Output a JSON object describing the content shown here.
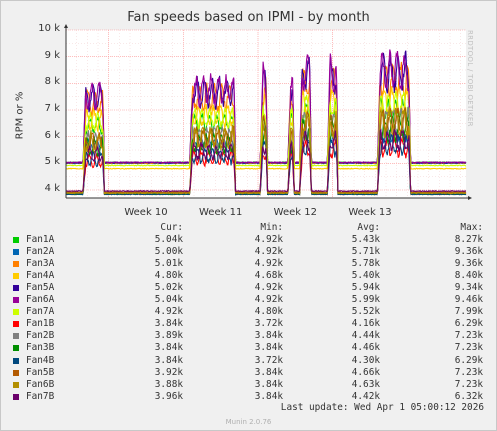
{
  "chart_data": {
    "type": "line",
    "title": "Fan speeds based on IPMI - by month",
    "ylabel": "RPM or %",
    "watermark": "RRDTOOL / TOBI OETIKER",
    "ylim": [
      3700,
      10000
    ],
    "yticks": [
      "4 k",
      "5 k",
      "6 k",
      "7 k",
      "8 k",
      "9 k",
      "10 k"
    ],
    "ytick_values": [
      4000,
      5000,
      6000,
      7000,
      8000,
      9000,
      10000
    ],
    "xlabels": [
      "Week 10",
      "Week 11",
      "Week 12",
      "Week 13"
    ],
    "xlabel_days": [
      7.5,
      14.5,
      21.5,
      28.5
    ],
    "xlim_days": [
      0,
      32
    ],
    "segments": [
      {
        "day_start": 0.0,
        "day_end": 1.6,
        "kind": "idle"
      },
      {
        "day_start": 1.6,
        "day_end": 3.6,
        "kind": "busy",
        "scale": 0.72
      },
      {
        "day_start": 3.6,
        "day_end": 11.6,
        "kind": "idle"
      },
      {
        "day_start": 11.6,
        "day_end": 15.9,
        "kind": "busy",
        "scale": 0.78
      },
      {
        "day_start": 15.9,
        "day_end": 18.2,
        "kind": "idle"
      },
      {
        "day_start": 18.2,
        "day_end": 18.9,
        "kind": "spike",
        "scale": 0.9
      },
      {
        "day_start": 18.9,
        "day_end": 20.8,
        "kind": "idle"
      },
      {
        "day_start": 20.8,
        "day_end": 21.4,
        "kind": "spike",
        "scale": 0.8
      },
      {
        "day_start": 21.4,
        "day_end": 21.9,
        "kind": "idle"
      },
      {
        "day_start": 21.9,
        "day_end": 23.0,
        "kind": "spike",
        "scale": 0.97
      },
      {
        "day_start": 23.0,
        "day_end": 24.5,
        "kind": "idle"
      },
      {
        "day_start": 24.5,
        "day_end": 25.5,
        "kind": "busy",
        "scale": 0.97
      },
      {
        "day_start": 25.5,
        "day_end": 29.2,
        "kind": "idle"
      },
      {
        "day_start": 29.2,
        "day_end": 32.3,
        "kind": "busy",
        "scale": 1.0
      },
      {
        "day_start": 32.3,
        "day_end": 33.0,
        "kind": "idle"
      },
      {
        "day_start": 33.0,
        "day_end": 37.5,
        "kind": "idle_cur"
      }
    ],
    "series": [
      {
        "name": "Fan1A",
        "color": "#00cc00",
        "idle": 5040,
        "peak": 7300,
        "cur": "5.04k",
        "min": "4.92k",
        "avg": "5.43k",
        "max": "8.27k"
      },
      {
        "name": "Fan2A",
        "color": "#0066b3",
        "idle": 5000,
        "peak": 6200,
        "cur": "5.00k",
        "min": "4.92k",
        "avg": "5.71k",
        "max": "9.36k"
      },
      {
        "name": "Fan3A",
        "color": "#ff8000",
        "idle": 5010,
        "peak": 8700,
        "cur": "5.01k",
        "min": "4.92k",
        "avg": "5.78k",
        "max": "9.36k"
      },
      {
        "name": "Fan4A",
        "color": "#ffcc00",
        "idle": 4800,
        "peak": 7800,
        "cur": "4.80k",
        "min": "4.68k",
        "avg": "5.40k",
        "max": "8.40k"
      },
      {
        "name": "Fan5A",
        "color": "#330099",
        "idle": 5020,
        "peak": 9000,
        "cur": "5.02k",
        "min": "4.92k",
        "avg": "5.94k",
        "max": "9.34k"
      },
      {
        "name": "Fan6A",
        "color": "#990099",
        "idle": 5040,
        "peak": 9100,
        "cur": "5.04k",
        "min": "4.92k",
        "avg": "5.99k",
        "max": "9.46k"
      },
      {
        "name": "Fan7A",
        "color": "#ccff00",
        "idle": 4920,
        "peak": 7600,
        "cur": "4.92k",
        "min": "4.80k",
        "avg": "5.52k",
        "max": "7.99k"
      },
      {
        "name": "Fan1B",
        "color": "#ff0000",
        "idle": 3840,
        "peak": 5900,
        "cur": "3.84k",
        "min": "3.72k",
        "avg": "4.16k",
        "max": "6.29k"
      },
      {
        "name": "Fan2B",
        "color": "#808080",
        "idle": 3890,
        "peak": 7000,
        "cur": "3.89k",
        "min": "3.84k",
        "avg": "4.44k",
        "max": "7.23k"
      },
      {
        "name": "Fan3B",
        "color": "#008f00",
        "idle": 3840,
        "peak": 6700,
        "cur": "3.84k",
        "min": "3.84k",
        "avg": "4.46k",
        "max": "7.23k"
      },
      {
        "name": "Fan4B",
        "color": "#00487d",
        "idle": 3840,
        "peak": 6000,
        "cur": "3.84k",
        "min": "3.72k",
        "avg": "4.30k",
        "max": "6.29k"
      },
      {
        "name": "Fan5B",
        "color": "#b35a00",
        "idle": 3920,
        "peak": 7000,
        "cur": "3.92k",
        "min": "3.84k",
        "avg": "4.66k",
        "max": "7.23k"
      },
      {
        "name": "Fan6B",
        "color": "#b38f00",
        "idle": 3880,
        "peak": 7000,
        "cur": "3.88k",
        "min": "3.84k",
        "avg": "4.63k",
        "max": "7.23k"
      },
      {
        "name": "Fan7B",
        "color": "#6b006b",
        "idle": 3960,
        "peak": 6200,
        "cur": "3.96k",
        "min": "3.84k",
        "avg": "4.42k",
        "max": "6.32k"
      }
    ]
  },
  "legend": {
    "headers": {
      "cur": "Cur:",
      "min": "Min:",
      "avg": "Avg:",
      "max": "Max:"
    }
  },
  "footer": {
    "last_update": "Last update:  Wed Apr  1 05:00:12 2026",
    "munin": "Munin 2.0.76"
  },
  "colors": {
    "plot_bg": "#ffffff",
    "grid": "#ff9999",
    "axis": "#333333",
    "page_bg": "#f0f0f0"
  }
}
